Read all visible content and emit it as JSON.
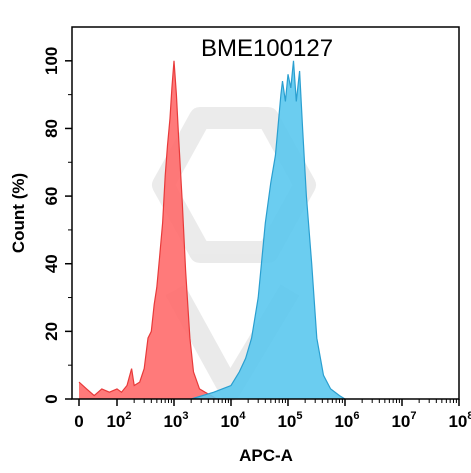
{
  "chart_data": {
    "type": "area",
    "title": "BME100127",
    "xlabel": "APC-A",
    "ylabel": "Count  (%)",
    "xscale": "biexponential-log",
    "x_ticks": [
      {
        "value": 0,
        "base": "0",
        "exp": ""
      },
      {
        "value": 100,
        "base": "10",
        "exp": "2"
      },
      {
        "value": 1000,
        "base": "10",
        "exp": "3"
      },
      {
        "value": 10000,
        "base": "10",
        "exp": "4"
      },
      {
        "value": 100000,
        "base": "10",
        "exp": "5"
      },
      {
        "value": 1000000,
        "base": "10",
        "exp": "6"
      },
      {
        "value": 10000000,
        "base": "10",
        "exp": "7"
      },
      {
        "value": 100000000,
        "base": "10",
        "exp": "8"
      }
    ],
    "ylim": [
      0,
      110
    ],
    "y_ticks": [
      0,
      20,
      40,
      60,
      80,
      100
    ],
    "grid": false,
    "legend": "none",
    "series": [
      {
        "color": "#ff6b6b",
        "stroke": "#e83a3a",
        "points": [
          [
            0,
            5
          ],
          [
            20,
            3
          ],
          [
            40,
            1
          ],
          [
            60,
            3
          ],
          [
            80,
            2
          ],
          [
            100,
            3
          ],
          [
            120,
            2
          ],
          [
            150,
            4
          ],
          [
            180,
            9
          ],
          [
            200,
            4
          ],
          [
            250,
            5
          ],
          [
            300,
            9
          ],
          [
            350,
            18
          ],
          [
            400,
            20
          ],
          [
            450,
            28
          ],
          [
            500,
            33
          ],
          [
            560,
            42
          ],
          [
            630,
            52
          ],
          [
            700,
            66
          ],
          [
            770,
            75
          ],
          [
            850,
            83
          ],
          [
            920,
            92
          ],
          [
            1000,
            100
          ],
          [
            1100,
            90
          ],
          [
            1200,
            78
          ],
          [
            1400,
            58
          ],
          [
            1600,
            38
          ],
          [
            1900,
            18
          ],
          [
            2200,
            8
          ],
          [
            2800,
            3
          ],
          [
            3500,
            2
          ],
          [
            4500,
            1
          ],
          [
            5600,
            0
          ]
        ]
      },
      {
        "color": "#5bc8ee",
        "stroke": "#2a9fd0",
        "points": [
          [
            2000,
            0
          ],
          [
            5000,
            2
          ],
          [
            7000,
            3
          ],
          [
            10000,
            4
          ],
          [
            14000,
            8
          ],
          [
            18000,
            12
          ],
          [
            23000,
            18
          ],
          [
            30000,
            30
          ],
          [
            40000,
            52
          ],
          [
            50000,
            64
          ],
          [
            60000,
            72
          ],
          [
            75000,
            90
          ],
          [
            80000,
            94
          ],
          [
            90000,
            88
          ],
          [
            100000,
            96
          ],
          [
            112000,
            92
          ],
          [
            125000,
            100
          ],
          [
            140000,
            88
          ],
          [
            160000,
            97
          ],
          [
            180000,
            80
          ],
          [
            210000,
            60
          ],
          [
            260000,
            40
          ],
          [
            320000,
            18
          ],
          [
            420000,
            7
          ],
          [
            560000,
            3
          ],
          [
            800000,
            1
          ],
          [
            1000000,
            0
          ]
        ]
      }
    ]
  }
}
